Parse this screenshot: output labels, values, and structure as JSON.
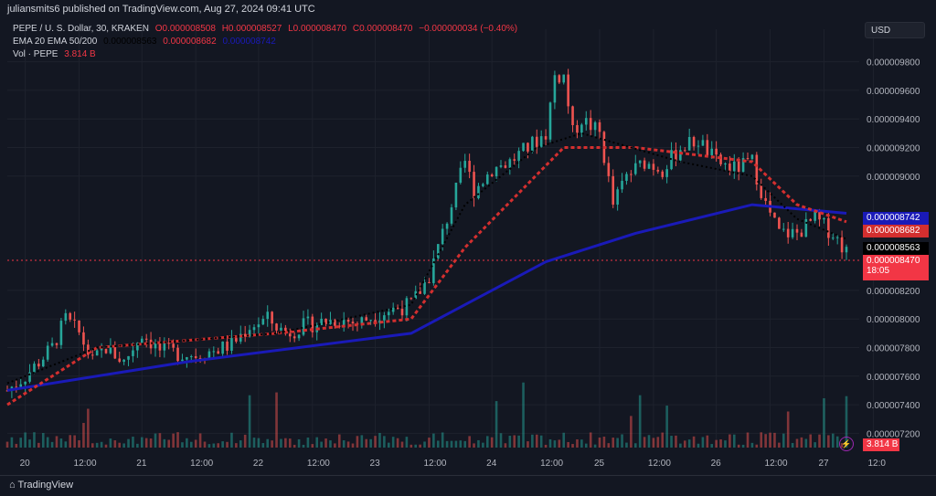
{
  "header": {
    "publisher": "juliansmits6 published on TradingView.com, Aug 27, 2024 09:41 UTC"
  },
  "legend": {
    "symbol": "PEPE / U. S. Dollar, 30, KRAKEN",
    "open": "O0.000008508",
    "high": "H0.000008527",
    "low": "L0.000008470",
    "close": "C0.000008470",
    "change": "−0.000000034 (−0.40%)",
    "ema_label": "EMA 20 EMA 50/200",
    "ema20_value": "0.000008563",
    "ema50_value": "0.000008682",
    "ema200_value": "0.000008742",
    "vol_label": "Vol · PEPE",
    "vol_value": "3.814 B"
  },
  "currency_button": "USD",
  "price_tags": {
    "ema200": "0.000008742",
    "ema50": "0.000008682",
    "ema20": "0.000008563",
    "last": "0.000008470",
    "countdown": "18:05",
    "volume": "3.814 B"
  },
  "footer": {
    "brand": "TradingView"
  },
  "colors": {
    "background": "#131722",
    "up": "#26a69a",
    "down": "#ef5350",
    "ema20": "#000000",
    "ema50": "#d32f2f",
    "ema200": "#1a1ab8",
    "last_price": "#f23645"
  },
  "chart_data": {
    "type": "candlestick",
    "title": "PEPE / U. S. Dollar, 30, KRAKEN",
    "xlabel": "",
    "ylabel": "",
    "x_tick_labels": [
      "20",
      "12:00",
      "21",
      "12:00",
      "22",
      "12:00",
      "23",
      "12:00",
      "24",
      "12:00",
      "25",
      "12:00",
      "26",
      "12:00",
      "27",
      "12:0"
    ],
    "y_tick_labels": [
      "0.000009800",
      "0.000009600",
      "0.000009400",
      "0.000009200",
      "0.000009000",
      "0.000008200",
      "0.000008000",
      "0.000007800",
      "0.000007600",
      "0.000007400",
      "0.000007200"
    ],
    "ylim": [
      7.1e-06,
      9.9e-06
    ],
    "series": [
      {
        "name": "PEPE",
        "points": [
          [
            0,
            7.5e-06
          ],
          [
            4,
            7.6e-06
          ],
          [
            7,
            7.7e-06
          ],
          [
            10,
            7.8e-06
          ],
          [
            13,
            8e-06
          ],
          [
            16,
            7.9e-06
          ],
          [
            19,
            7.7e-06
          ],
          [
            22,
            7.8e-06
          ],
          [
            26,
            7.7e-06
          ],
          [
            30,
            7.9e-06
          ],
          [
            34,
            7.78e-06
          ],
          [
            38,
            7.76e-06
          ],
          [
            42,
            7.75e-06
          ],
          [
            46,
            7.78e-06
          ],
          [
            50,
            7.82e-06
          ],
          [
            54,
            7.95e-06
          ],
          [
            58,
            8e-06
          ],
          [
            62,
            7.9e-06
          ],
          [
            66,
            7.95e-06
          ],
          [
            70,
            7.98e-06
          ],
          [
            74,
            8e-06
          ],
          [
            78,
            7.97e-06
          ],
          [
            82,
            8.03e-06
          ],
          [
            86,
            8.07e-06
          ],
          [
            90,
            8.1e-06
          ],
          [
            94,
            8.3e-06
          ],
          [
            98,
            8.7e-06
          ],
          [
            102,
            9.1e-06
          ],
          [
            104,
            8.9e-06
          ],
          [
            108,
            9.05e-06
          ],
          [
            112,
            9.1e-06
          ],
          [
            116,
            9.2e-06
          ],
          [
            120,
            9.3e-06
          ],
          [
            122,
            9.7e-06
          ],
          [
            124,
            9.7e-06
          ],
          [
            126,
            9.3e-06
          ],
          [
            128,
            9.4e-06
          ],
          [
            132,
            9.3e-06
          ],
          [
            135,
            8.8e-06
          ],
          [
            138,
            9e-06
          ],
          [
            142,
            9.1e-06
          ],
          [
            146,
            9.05e-06
          ],
          [
            150,
            9.2e-06
          ],
          [
            154,
            9.25e-06
          ],
          [
            158,
            9.1e-06
          ],
          [
            162,
            9.05e-06
          ],
          [
            166,
            9.1e-06
          ],
          [
            169,
            8.8e-06
          ],
          [
            172,
            8.6e-06
          ],
          [
            176,
            8.6e-06
          ],
          [
            180,
            8.7e-06
          ],
          [
            184,
            8.6e-06
          ],
          [
            187,
            8.47e-06
          ]
        ]
      },
      {
        "name": "EMA 20",
        "points": [
          [
            0,
            7.55e-06
          ],
          [
            20,
            7.8e-06
          ],
          [
            60,
            7.9e-06
          ],
          [
            90,
            8.1e-06
          ],
          [
            102,
            8.8e-06
          ],
          [
            118,
            9.2e-06
          ],
          [
            128,
            9.3e-06
          ],
          [
            150,
            9.1e-06
          ],
          [
            166,
            9e-06
          ],
          [
            176,
            8.7e-06
          ],
          [
            187,
            8.56e-06
          ]
        ]
      },
      {
        "name": "EMA 50",
        "points": [
          [
            0,
            7.4e-06
          ],
          [
            20,
            7.8e-06
          ],
          [
            60,
            7.9e-06
          ],
          [
            90,
            8e-06
          ],
          [
            102,
            8.5e-06
          ],
          [
            124,
            9.2e-06
          ],
          [
            140,
            9.2e-06
          ],
          [
            166,
            9.1e-06
          ],
          [
            176,
            8.8e-06
          ],
          [
            187,
            8.68e-06
          ]
        ]
      },
      {
        "name": "EMA 200",
        "points": [
          [
            0,
            7.5e-06
          ],
          [
            40,
            7.7e-06
          ],
          [
            90,
            7.9e-06
          ],
          [
            120,
            8.4e-06
          ],
          [
            140,
            8.6e-06
          ],
          [
            166,
            8.8e-06
          ],
          [
            187,
            8.74e-06
          ]
        ]
      }
    ]
  }
}
